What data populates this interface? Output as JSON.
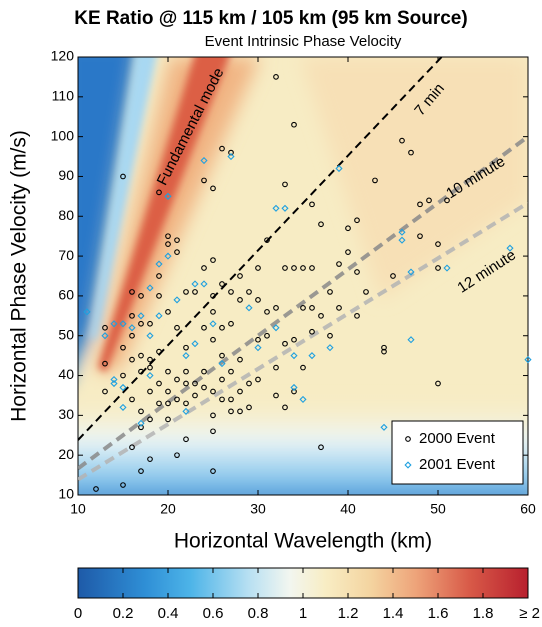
{
  "chart_data": {
    "type": "scatter",
    "title": "KE Ratio @ 115 km / 105 km (95 km Source)",
    "subtitle": "Event Intrinsic Phase Velocity",
    "x_label": "Horizontal Wavelength (km)",
    "y_label": "Horizontal Phase Velocity (m/s)",
    "xlim": [
      10,
      60
    ],
    "ylim": [
      10,
      120
    ],
    "xticks": [
      10,
      20,
      30,
      40,
      50,
      60
    ],
    "yticks": [
      10,
      20,
      30,
      40,
      50,
      60,
      70,
      80,
      90,
      100,
      110,
      120
    ],
    "grid": false,
    "legend": "lower right",
    "mode_label": "Fundamental mode",
    "reference_lines": [
      {
        "value": 7,
        "label": "7 min",
        "color": "#000000"
      },
      {
        "value": 10,
        "label": "10 minute",
        "color": "#8a8a8a"
      },
      {
        "value": 12,
        "label": "12 minute",
        "color": "#b4b4b4"
      }
    ],
    "series": [
      {
        "name": "2000 Event",
        "color": "#000000",
        "marker": "circle",
        "x": [
          12,
          13,
          13,
          13,
          15,
          15,
          15,
          15,
          16,
          16,
          16,
          16,
          16,
          16,
          17,
          17,
          17,
          17,
          17,
          17,
          17,
          18,
          18,
          18,
          18,
          18,
          18,
          19,
          19,
          19,
          19,
          19,
          19,
          20,
          20,
          20,
          20,
          20,
          20,
          20,
          21,
          21,
          21,
          21,
          21,
          21,
          22,
          22,
          22,
          22,
          22,
          22,
          23,
          23,
          23,
          24,
          24,
          24,
          24,
          24,
          25,
          25,
          25,
          25,
          25,
          25,
          25,
          25,
          25,
          26,
          26,
          26,
          26,
          26,
          26,
          27,
          27,
          27,
          27,
          27,
          27,
          28,
          28,
          28,
          28,
          28,
          29,
          29,
          29,
          30,
          30,
          30,
          30,
          31,
          31,
          31,
          32,
          32,
          32,
          32,
          33,
          33,
          33,
          33,
          34,
          34,
          34,
          34,
          35,
          35,
          35,
          36,
          36,
          36,
          36,
          37,
          37,
          37,
          38,
          38,
          39,
          39,
          40,
          40,
          41,
          41,
          41,
          42,
          43,
          44,
          44,
          45,
          46,
          47,
          48,
          48,
          49,
          50,
          50,
          50,
          51
        ],
        "values": [
          11.5,
          52,
          43,
          36,
          90,
          47,
          40,
          12.5,
          61,
          55,
          50,
          44,
          34,
          22,
          60,
          53,
          45,
          41,
          31,
          27,
          16,
          53,
          44,
          42,
          36,
          29,
          19,
          86,
          65,
          60,
          46,
          38,
          33,
          75,
          73,
          56,
          41,
          36,
          33,
          29,
          74,
          71,
          52,
          39,
          34,
          20,
          61,
          47,
          41,
          38,
          33,
          24,
          61,
          38,
          35,
          89,
          67,
          52,
          41,
          37,
          87,
          69,
          60,
          56,
          49,
          36,
          30,
          26,
          16,
          97,
          63,
          52,
          45,
          39,
          34,
          96,
          61,
          53,
          41,
          34,
          31,
          65,
          59,
          44,
          36,
          31,
          61,
          38,
          32,
          67,
          59,
          49,
          39,
          74,
          56,
          50,
          115,
          57,
          42,
          35,
          88,
          67,
          48,
          32,
          103,
          67,
          49,
          36,
          67,
          57,
          42,
          83,
          67,
          57,
          51,
          78,
          55,
          22,
          61,
          50,
          68,
          57,
          77,
          71,
          79,
          66,
          55,
          61,
          89,
          47,
          46,
          65,
          99,
          96,
          75,
          83,
          84,
          73,
          67,
          38,
          84
        ]
      },
      {
        "name": "2001 Event",
        "color": "#1ea0e0",
        "marker": "diamond",
        "x": [
          11,
          13,
          14,
          14,
          14,
          15,
          15,
          15,
          16,
          17,
          17,
          18,
          18,
          18,
          19,
          19,
          20,
          20,
          21,
          22,
          22,
          23,
          23,
          24,
          24,
          25,
          26,
          27,
          29,
          30,
          32,
          32,
          33,
          34,
          34,
          35,
          36,
          38,
          39,
          44,
          46,
          46,
          47,
          47,
          51,
          58,
          60
        ],
        "values": [
          56,
          50,
          53,
          38,
          39,
          53,
          37,
          32,
          52,
          55,
          28,
          62,
          50,
          40,
          68,
          55,
          85,
          70,
          59,
          45,
          31,
          63,
          48,
          94,
          63,
          53,
          43,
          95,
          57,
          47,
          82,
          52,
          82,
          37,
          45,
          34,
          45,
          47,
          92,
          27,
          76,
          74,
          66,
          49,
          67,
          72,
          44
        ]
      }
    ],
    "colorbar": {
      "lim": [
        0,
        2
      ],
      "ticks": [
        0,
        0.2,
        0.4,
        0.6,
        0.8,
        1,
        1.2,
        1.4,
        1.6,
        1.8,
        {
          "value": 2,
          "label": "≥ 2"
        }
      ]
    }
  }
}
